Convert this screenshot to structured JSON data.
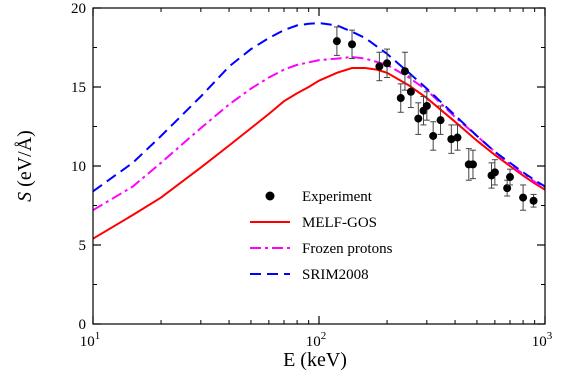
{
  "chart_data": {
    "type": "line",
    "xscale": "log",
    "xlim": [
      10,
      1000
    ],
    "ylim": [
      0,
      20
    ],
    "x_ticks": [
      10,
      100,
      1000
    ],
    "x_tick_labels": [
      {
        "base": "10",
        "exp": "1"
      },
      {
        "base": "10",
        "exp": "2"
      },
      {
        "base": "10",
        "exp": "3"
      }
    ],
    "y_ticks": [
      0,
      5,
      10,
      15,
      20
    ],
    "y_tick_labels": [
      "0",
      "5",
      "10",
      "15",
      "20"
    ],
    "xlabel": "E (keV)",
    "ylabel": {
      "symbol": "S",
      "unit": "(eV/Å)"
    },
    "grid": false,
    "legend_position": "lower-right",
    "series": [
      {
        "name": "Experiment",
        "kind": "points",
        "color": "#000000",
        "points": [
          {
            "x": 120,
            "y": 17.9,
            "err": 0.9
          },
          {
            "x": 140,
            "y": 17.7,
            "err": 0.9
          },
          {
            "x": 185,
            "y": 16.3,
            "err": 0.9
          },
          {
            "x": 200,
            "y": 16.5,
            "err": 0.9
          },
          {
            "x": 230,
            "y": 14.3,
            "err": 0.9
          },
          {
            "x": 240,
            "y": 16.0,
            "err": 1.2
          },
          {
            "x": 255,
            "y": 14.7,
            "err": 1.0
          },
          {
            "x": 275,
            "y": 13.0,
            "err": 1.0
          },
          {
            "x": 290,
            "y": 13.5,
            "err": 0.9
          },
          {
            "x": 300,
            "y": 13.8,
            "err": 0.9
          },
          {
            "x": 320,
            "y": 11.9,
            "err": 0.9
          },
          {
            "x": 345,
            "y": 12.9,
            "err": 0.9
          },
          {
            "x": 385,
            "y": 11.7,
            "err": 0.9
          },
          {
            "x": 410,
            "y": 11.8,
            "err": 0.8
          },
          {
            "x": 460,
            "y": 10.1,
            "err": 1.0
          },
          {
            "x": 480,
            "y": 10.1,
            "err": 0.9
          },
          {
            "x": 580,
            "y": 9.4,
            "err": 0.8
          },
          {
            "x": 600,
            "y": 9.6,
            "err": 0.8
          },
          {
            "x": 680,
            "y": 8.6,
            "err": 0.5
          },
          {
            "x": 700,
            "y": 9.3,
            "err": 0.5
          },
          {
            "x": 800,
            "y": 8.0,
            "err": 0.8
          },
          {
            "x": 890,
            "y": 7.8,
            "err": 0.4
          }
        ]
      },
      {
        "name": "MELF-GOS",
        "kind": "line",
        "color": "#ff0000",
        "dash": "solid",
        "points": [
          [
            10,
            5.4
          ],
          [
            15,
            6.9
          ],
          [
            20,
            8.0
          ],
          [
            30,
            9.9
          ],
          [
            40,
            11.3
          ],
          [
            50,
            12.4
          ],
          [
            60,
            13.3
          ],
          [
            70,
            14.1
          ],
          [
            80,
            14.6
          ],
          [
            90,
            15.0
          ],
          [
            100,
            15.4
          ],
          [
            120,
            15.9
          ],
          [
            140,
            16.2
          ],
          [
            160,
            16.2
          ],
          [
            180,
            16.1
          ],
          [
            200,
            15.9
          ],
          [
            250,
            15.1
          ],
          [
            300,
            14.3
          ],
          [
            400,
            12.8
          ],
          [
            500,
            11.6
          ],
          [
            600,
            10.7
          ],
          [
            700,
            10.0
          ],
          [
            800,
            9.4
          ],
          [
            900,
            8.9
          ],
          [
            1000,
            8.5
          ]
        ]
      },
      {
        "name": "Frozen protons",
        "kind": "line",
        "color": "#ff00ff",
        "dash": "dashdot",
        "points": [
          [
            10,
            7.2
          ],
          [
            15,
            8.7
          ],
          [
            20,
            10.2
          ],
          [
            30,
            12.4
          ],
          [
            40,
            13.9
          ],
          [
            50,
            14.9
          ],
          [
            60,
            15.6
          ],
          [
            70,
            16.1
          ],
          [
            80,
            16.4
          ],
          [
            100,
            16.7
          ],
          [
            120,
            16.8
          ],
          [
            140,
            16.9
          ],
          [
            160,
            16.8
          ],
          [
            200,
            16.4
          ],
          [
            250,
            15.6
          ],
          [
            300,
            14.8
          ],
          [
            400,
            13.1
          ],
          [
            500,
            11.9
          ],
          [
            600,
            10.9
          ],
          [
            700,
            10.1
          ],
          [
            800,
            9.5
          ],
          [
            900,
            9.0
          ],
          [
            1000,
            8.6
          ]
        ]
      },
      {
        "name": "SRIM2008",
        "kind": "line",
        "color": "#0000ff",
        "dash": "dashed",
        "points": [
          [
            10,
            8.4
          ],
          [
            15,
            10.2
          ],
          [
            20,
            11.9
          ],
          [
            30,
            14.4
          ],
          [
            40,
            16.3
          ],
          [
            50,
            17.4
          ],
          [
            60,
            18.1
          ],
          [
            70,
            18.6
          ],
          [
            80,
            18.9
          ],
          [
            90,
            19.0
          ],
          [
            100,
            19.05
          ],
          [
            120,
            18.9
          ],
          [
            140,
            18.5
          ],
          [
            160,
            18.1
          ],
          [
            200,
            17.1
          ],
          [
            250,
            15.9
          ],
          [
            300,
            14.9
          ],
          [
            400,
            13.2
          ],
          [
            500,
            11.9
          ],
          [
            600,
            10.9
          ],
          [
            700,
            10.2
          ],
          [
            800,
            9.6
          ],
          [
            900,
            9.1
          ],
          [
            1000,
            8.7
          ]
        ]
      }
    ]
  }
}
